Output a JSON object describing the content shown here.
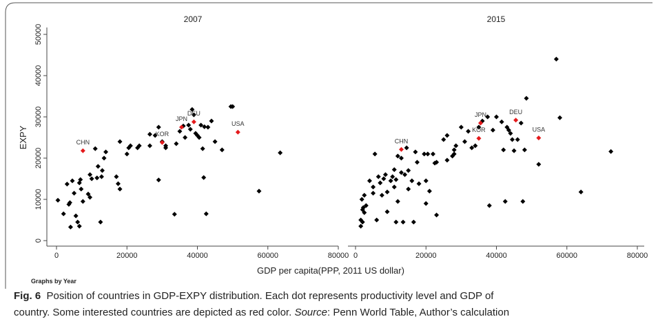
{
  "chart_data": [
    {
      "type": "scatter",
      "title": "2007",
      "xlim": [
        0,
        80000
      ],
      "xticks": [
        0,
        20000,
        40000,
        60000,
        80000
      ],
      "ylim": [
        0,
        50000
      ],
      "yticks": [
        0,
        10000,
        20000,
        30000,
        40000,
        50000
      ],
      "series": [
        {
          "color": "#000000",
          "x": [
            400,
            2000,
            3000,
            3500,
            3800,
            4000,
            4500,
            5000,
            5500,
            6000,
            6500,
            6500,
            6800,
            7000,
            7500,
            9000,
            9500,
            9500,
            10000,
            11000,
            11500,
            11800,
            12500,
            12800,
            13000,
            13500,
            14000,
            17000,
            17500,
            18000,
            18000,
            20000,
            20500,
            21000,
            23000,
            23500,
            26500,
            26500,
            28000,
            29000,
            29000,
            30000,
            31000,
            31000,
            33500,
            34000,
            35000,
            36000,
            36500,
            37500,
            38000,
            38500,
            39000,
            39500,
            40000,
            40500,
            41000,
            41500,
            41800,
            42000,
            42500,
            43000,
            44000,
            45000,
            47000,
            49500,
            50000,
            57500,
            63500
          ],
          "y": [
            9800,
            6500,
            13700,
            8800,
            9200,
            3300,
            14500,
            11500,
            6000,
            4500,
            14000,
            3500,
            14800,
            12500,
            9500,
            11300,
            10500,
            16000,
            15000,
            22300,
            15200,
            18000,
            4500,
            15500,
            17000,
            20000,
            21500,
            15500,
            13800,
            12500,
            24000,
            21000,
            22500,
            23000,
            22500,
            23000,
            23000,
            25800,
            25500,
            14700,
            27500,
            24000,
            22500,
            23000,
            6400,
            23500,
            26500,
            27800,
            25000,
            28000,
            27000,
            31800,
            30500,
            26000,
            25500,
            25000,
            28000,
            22300,
            15300,
            27600,
            6500,
            27500,
            29000,
            24000,
            22000,
            32500,
            32500,
            12000,
            21300
          ]
        },
        {
          "color": "#e41a1c",
          "labels": [
            "CHN",
            "KOR",
            "JPN",
            "DEU",
            "USA"
          ],
          "x": [
            7500,
            30000,
            35500,
            39000,
            51500
          ],
          "y": [
            21800,
            23800,
            27500,
            28800,
            26300
          ]
        }
      ]
    },
    {
      "type": "scatter",
      "title": "2015",
      "xlim": [
        0,
        80000
      ],
      "xticks": [
        0,
        20000,
        40000,
        60000,
        80000
      ],
      "ylim": [
        0,
        50000
      ],
      "series": [
        {
          "color": "#000000",
          "x": [
            1500,
            1500,
            1800,
            2000,
            2000,
            2200,
            2500,
            2500,
            3000,
            4000,
            5000,
            5000,
            5500,
            6000,
            6500,
            7000,
            7500,
            8000,
            8500,
            9000,
            9000,
            10000,
            10500,
            11000,
            11000,
            11500,
            11500,
            12000,
            12000,
            13000,
            13000,
            13500,
            14000,
            14500,
            15000,
            15000,
            16000,
            16500,
            17000,
            17500,
            18000,
            19500,
            20000,
            20000,
            20500,
            21000,
            22000,
            22500,
            23000,
            23000,
            25000,
            26000,
            26000,
            27500,
            28000,
            28000,
            28500,
            30000,
            31000,
            32000,
            33000,
            34000,
            35000,
            36000,
            37500,
            38000,
            39000,
            40000,
            41500,
            42000,
            42500,
            43000,
            43500,
            44000,
            44500,
            45000,
            46000,
            47000,
            47500,
            48000,
            48500,
            52000,
            57000,
            58000,
            64000,
            72500
          ],
          "y": [
            3500,
            5000,
            10000,
            7500,
            4500,
            8000,
            6800,
            11000,
            8500,
            14500,
            13000,
            11500,
            21000,
            5000,
            15500,
            14000,
            11000,
            15000,
            16000,
            7000,
            11800,
            14500,
            15500,
            17200,
            13000,
            14800,
            4500,
            9500,
            20500,
            16500,
            20000,
            4500,
            16000,
            22500,
            17000,
            12500,
            14500,
            4500,
            21500,
            19000,
            13800,
            21000,
            9000,
            14500,
            21000,
            12000,
            21000,
            18800,
            6200,
            19000,
            24500,
            25500,
            19500,
            20500,
            21000,
            22000,
            23000,
            27500,
            24000,
            26500,
            22500,
            23000,
            27500,
            29000,
            30000,
            8500,
            26800,
            30000,
            28800,
            22000,
            9500,
            27500,
            26800,
            26000,
            24500,
            21800,
            24500,
            28500,
            9500,
            22000,
            34500,
            18500,
            44000,
            29800,
            11800,
            21600
          ]
        },
        {
          "color": "#e41a1c",
          "labels": [
            "CHN",
            "KOR",
            "JPN",
            "DEU",
            "USA"
          ],
          "x": [
            13000,
            35000,
            35500,
            45500,
            52000
          ],
          "y": [
            22100,
            24800,
            28500,
            29200,
            24900
          ]
        }
      ]
    }
  ],
  "y_label": "EXPY",
  "x_label": "GDP per capita(PPP, 2011 US dollar)",
  "note": "Graphs by Year",
  "figure_label": "Fig. 6",
  "caption": [
    "Position of countries in GDP-EXPY distribution. Each dot represents productivity level and GDP of",
    "country. Some interested countries are depicted as red color. ",
    "Source",
    ": Penn World Table, Author’s calculation"
  ]
}
